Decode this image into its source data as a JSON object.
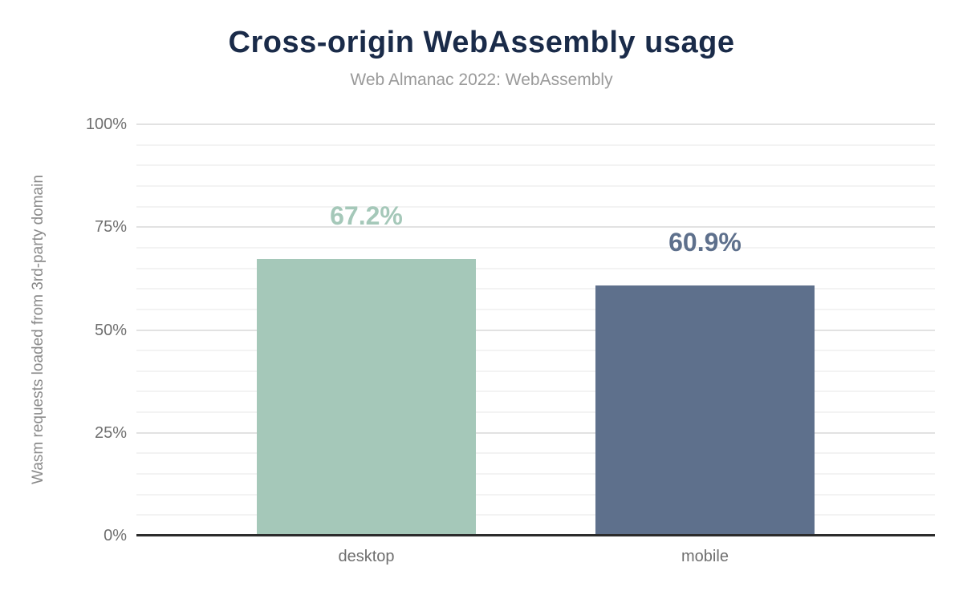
{
  "chart_data": {
    "type": "bar",
    "title": "Cross-origin WebAssembly usage",
    "subtitle": "Web Almanac 2022: WebAssembly",
    "ylabel": "Wasm requests loaded from 3rd-party domain",
    "xlabel": "",
    "categories": [
      "desktop",
      "mobile"
    ],
    "values": [
      67.2,
      60.9
    ],
    "value_labels": [
      "67.2%",
      "60.9%"
    ],
    "bar_colors": [
      "#a5c8b9",
      "#5e708c"
    ],
    "ylim": [
      0,
      100
    ],
    "yticks": [
      0,
      25,
      50,
      75,
      100
    ],
    "ytick_labels": [
      "0%",
      "25%",
      "50%",
      "75%",
      "100%"
    ],
    "minor_grid_step": 5,
    "grid": true,
    "legend": "none"
  },
  "colors": {
    "background": "#ffffff",
    "title_text": "#1a2b49",
    "subtitle_text": "#9a9a9a",
    "tick_text": "#6f6f6f",
    "axis_title_text": "#8a8a8a",
    "axis_line": "#2b2b2b",
    "grid_major": "#e2e2e2",
    "grid_minor": "#f3f3f3"
  }
}
